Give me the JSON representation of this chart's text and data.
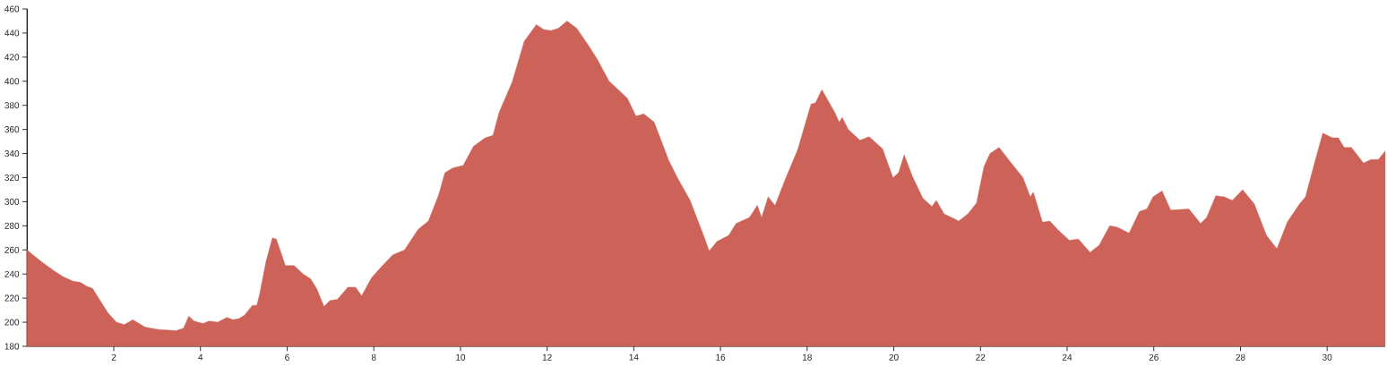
{
  "chart_data": {
    "type": "area",
    "x": [
      0,
      0.13,
      0.34,
      0.61,
      0.82,
      1.06,
      1.23,
      1.37,
      1.51,
      1.65,
      1.86,
      2.06,
      2.24,
      2.44,
      2.72,
      3.03,
      3.44,
      3.61,
      3.73,
      3.85,
      4.06,
      4.2,
      4.4,
      4.61,
      4.75,
      4.89,
      5.02,
      5.2,
      5.3,
      5.37,
      5.51,
      5.66,
      5.75,
      5.96,
      6.16,
      6.37,
      6.54,
      6.68,
      6.85,
      6.99,
      7.16,
      7.4,
      7.58,
      7.72,
      7.95,
      8.2,
      8.44,
      8.71,
      9.02,
      9.26,
      9.5,
      9.64,
      9.82,
      10.06,
      10.3,
      10.57,
      10.75,
      10.89,
      11.2,
      11.47,
      11.75,
      11.92,
      12.09,
      12.26,
      12.46,
      12.68,
      12.95,
      13.16,
      13.43,
      13.61,
      13.85,
      14.05,
      14.23,
      14.47,
      14.81,
      15.02,
      15.3,
      15.61,
      15.74,
      15.92,
      16.19,
      16.36,
      16.67,
      16.85,
      16.95,
      17.1,
      17.26,
      17.5,
      17.78,
      18.09,
      18.19,
      18.34,
      18.64,
      18.74,
      18.81,
      18.95,
      19.22,
      19.43,
      19.74,
      19.98,
      20.11,
      20.24,
      20.43,
      20.67,
      20.88,
      20.98,
      21.16,
      21.5,
      21.71,
      21.91,
      22.08,
      22.22,
      22.43,
      22.67,
      22.98,
      23.15,
      23.22,
      23.43,
      23.6,
      23.78,
      24.05,
      24.26,
      24.53,
      24.74,
      24.98,
      25.15,
      25.43,
      25.67,
      25.84,
      25.98,
      26.19,
      26.39,
      26.81,
      27.08,
      27.22,
      27.43,
      27.63,
      27.81,
      28.05,
      28.32,
      28.6,
      28.84,
      29.08,
      29.36,
      29.5,
      29.7,
      29.9,
      30.12,
      30.26,
      30.39,
      30.56,
      30.84,
      31.01,
      31.18,
      31.34
    ],
    "series": [
      {
        "color": "#cd6358",
        "values": [
          260,
          256,
          250,
          243,
          238,
          234,
          233,
          230,
          228,
          220,
          208,
          200,
          198,
          202,
          196,
          194,
          193,
          195,
          205,
          201,
          199,
          201,
          200,
          204,
          202,
          203,
          206,
          214,
          214,
          224,
          250,
          270,
          269,
          247,
          247,
          240,
          236,
          228,
          213,
          218,
          219,
          229,
          229,
          222,
          237,
          247,
          256,
          260,
          277,
          284,
          306,
          324,
          328,
          330,
          346,
          353,
          355,
          374,
          400,
          433,
          447,
          443,
          442,
          444,
          450,
          444,
          430,
          418,
          400,
          394,
          386,
          371,
          373,
          366,
          334,
          319,
          301,
          272,
          259,
          267,
          272,
          282,
          287,
          297,
          287,
          304,
          297,
          319,
          343,
          381,
          382,
          393,
          374,
          366,
          370,
          360,
          351,
          354,
          344,
          320,
          324,
          339,
          321,
          303,
          296,
          301,
          290,
          284,
          290,
          299,
          329,
          340,
          345,
          334,
          320,
          304,
          308,
          283,
          284,
          277,
          268,
          269,
          258,
          264,
          280,
          279,
          274,
          292,
          294,
          304,
          309,
          293,
          294,
          282,
          287,
          305,
          304,
          301,
          310,
          298,
          272,
          261,
          283,
          298,
          304,
          331,
          357,
          353,
          353,
          345,
          345,
          332,
          335,
          335,
          342
        ]
      }
    ],
    "xlim": [
      0,
      31.34
    ],
    "ylim": [
      180,
      460
    ],
    "xticks": [
      2,
      4,
      6,
      8,
      10,
      12,
      14,
      16,
      18,
      20,
      22,
      24,
      26,
      28,
      30
    ],
    "yticks": [
      180,
      200,
      220,
      240,
      260,
      280,
      300,
      320,
      340,
      360,
      380,
      400,
      420,
      440,
      460
    ]
  }
}
